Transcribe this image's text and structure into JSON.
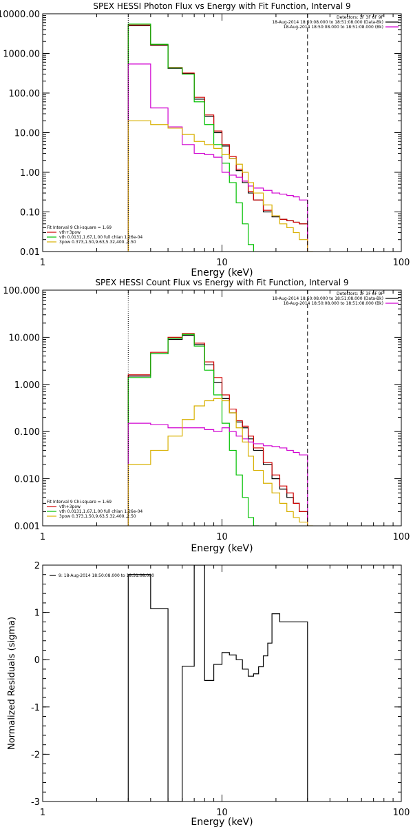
{
  "chart_data": [
    {
      "type": "line",
      "title": "SPEX HESSI Photon Flux vs Energy with Fit Function, Interval 9",
      "xlabel": "Energy (keV)",
      "ylabel": "",
      "xscale": "log",
      "yscale": "log",
      "xlim": [
        1,
        100
      ],
      "ylim": [
        0.01,
        10000
      ],
      "x_ticks": [
        1,
        10,
        100
      ],
      "x_tick_labels": [
        "1",
        "10",
        "100"
      ],
      "y_ticks": [
        10000,
        1000,
        100,
        10,
        1,
        0.1,
        0.01
      ],
      "y_tick_labels": [
        "10000.00",
        "1000.00",
        "100.00",
        "10.00",
        "1.00",
        "0.10",
        "0.01"
      ],
      "legend_top_right": [
        {
          "text": "Detectors: 1F 3F 6F 9F",
          "color": "#000000",
          "line": false
        },
        {
          "text": "18-Aug-2014 18:50:08.000 to 18:51:08.000 (Data-Bk)",
          "color": "#000000",
          "line": true
        },
        {
          "text": "18-Aug-2014 18:50:08.000 to 18:51:08.000 (Bk)",
          "color": "#d000d0",
          "line": true
        }
      ],
      "legend_bottom_left": [
        {
          "text": "Fit Interval 9   Chi-square = 1.69",
          "color": "#000000",
          "line": false
        },
        {
          "text": "vth+3pow",
          "color": "#d00000",
          "line": true
        },
        {
          "text": "vth 0.0131,1.67,1.00  full chian 1.26e-04",
          "color": "#00c000",
          "line": true
        },
        {
          "text": "3pow 0.373,1.50,9.63,5.32,400.,2.50",
          "color": "#d8b000",
          "line": true
        }
      ],
      "vlines": [
        {
          "x": 3,
          "style": "dotted",
          "color": "#000000"
        },
        {
          "x": 30,
          "style": "dashed",
          "color": "#000000"
        }
      ],
      "series": [
        {
          "color": "#000000",
          "edges": [
            3,
            4,
            5,
            6,
            7,
            8,
            9,
            10,
            11,
            12,
            13,
            14,
            15,
            17,
            19,
            21,
            23,
            25,
            27,
            30
          ],
          "values": [
            5000,
            1600,
            420,
            310,
            70,
            26,
            10,
            4.6,
            2.2,
            1.1,
            0.55,
            0.3,
            0.2,
            0.1,
            0.075,
            0.065,
            0.06,
            0.055,
            0.05
          ]
        },
        {
          "color": "#d00000",
          "edges": [
            3,
            4,
            5,
            6,
            7,
            8,
            9,
            10,
            11,
            12,
            13,
            14,
            15,
            17,
            19,
            21,
            23,
            25,
            27,
            30
          ],
          "values": [
            5200,
            1650,
            440,
            320,
            78,
            28,
            11,
            5.0,
            2.5,
            1.2,
            0.6,
            0.33,
            0.2,
            0.11,
            0.08,
            0.065,
            0.06,
            0.055,
            0.05
          ]
        },
        {
          "color": "#00c000",
          "edges": [
            3,
            4,
            5,
            6,
            7,
            8,
            9,
            10,
            11,
            12,
            13,
            14,
            15
          ],
          "values": [
            5500,
            1700,
            430,
            300,
            60,
            16,
            5,
            1.7,
            0.55,
            0.17,
            0.05,
            0.015
          ]
        },
        {
          "color": "#d000d0",
          "edges": [
            3,
            4,
            5,
            6,
            7,
            8,
            9,
            10,
            11,
            12,
            13,
            14,
            15,
            17,
            19,
            21,
            23,
            25,
            27,
            30
          ],
          "values": [
            540,
            42,
            14,
            5,
            3,
            2.8,
            2.4,
            1.0,
            0.85,
            0.75,
            0.6,
            0.45,
            0.4,
            0.35,
            0.3,
            0.28,
            0.26,
            0.24,
            0.2
          ]
        },
        {
          "color": "#d8b000",
          "edges": [
            3,
            4,
            5,
            6,
            7,
            8,
            9,
            10,
            11,
            12,
            13,
            14,
            15,
            17,
            19,
            21,
            23,
            25,
            27,
            30,
            32
          ],
          "values": [
            20,
            16,
            13,
            9,
            6,
            5,
            4,
            2.8,
            2.2,
            1.6,
            1.0,
            0.55,
            0.3,
            0.15,
            0.08,
            0.05,
            0.04,
            0.03,
            0.02,
            0.01
          ]
        }
      ]
    },
    {
      "type": "line",
      "title": "SPEX HESSI Count Flux vs Energy with Fit Function, Interval 9",
      "xlabel": "Energy (keV)",
      "ylabel": "",
      "xscale": "log",
      "yscale": "log",
      "xlim": [
        1,
        100
      ],
      "ylim": [
        0.001,
        100
      ],
      "x_ticks": [
        1,
        10,
        100
      ],
      "x_tick_labels": [
        "1",
        "10",
        "100"
      ],
      "y_ticks": [
        100,
        10,
        1,
        0.1,
        0.01,
        0.001
      ],
      "y_tick_labels": [
        "100.000",
        "10.000",
        "1.000",
        "0.100",
        "0.010",
        "0.001"
      ],
      "legend_top_right": [
        {
          "text": "Detectors: 1F 3F 6F 9F",
          "color": "#000000",
          "line": false
        },
        {
          "text": "18-Aug-2014 18:50:08.000 to 18:51:08.000 (Data-Bk)",
          "color": "#000000",
          "line": true
        },
        {
          "text": "18-Aug-2014 18:50:08.000 to 18:51:08.000 (Bk)",
          "color": "#d000d0",
          "line": true
        }
      ],
      "legend_bottom_left": [
        {
          "text": "Fit Interval 9   Chi-square = 1.69",
          "color": "#000000",
          "line": false
        },
        {
          "text": "vth+3pow",
          "color": "#d00000",
          "line": true
        },
        {
          "text": "vth 0.0131,1.67,1.00  full chian 1.26e-04",
          "color": "#00c000",
          "line": true
        },
        {
          "text": "3pow 0.373,1.50,9.63,5.32,400.,2.50",
          "color": "#d8b000",
          "line": true
        }
      ],
      "vlines": [
        {
          "x": 3,
          "style": "dotted",
          "color": "#000000"
        },
        {
          "x": 30,
          "style": "dashed",
          "color": "#000000"
        }
      ],
      "series": [
        {
          "color": "#000000",
          "edges": [
            3,
            4,
            5,
            6,
            7,
            8,
            9,
            10,
            11,
            12,
            13,
            14,
            15,
            17,
            19,
            21,
            23,
            25,
            27,
            30
          ],
          "values": [
            1.5,
            4.5,
            9,
            11,
            7,
            2.6,
            1.1,
            0.5,
            0.25,
            0.16,
            0.12,
            0.07,
            0.04,
            0.02,
            0.01,
            0.006,
            0.004,
            0.003,
            0.002
          ]
        },
        {
          "color": "#d00000",
          "edges": [
            3,
            4,
            5,
            6,
            7,
            8,
            9,
            10,
            11,
            12,
            13,
            14,
            15,
            17,
            19,
            21,
            23,
            25,
            27,
            30
          ],
          "values": [
            1.6,
            4.8,
            10,
            12,
            7.5,
            3.0,
            1.4,
            0.6,
            0.3,
            0.17,
            0.13,
            0.08,
            0.045,
            0.022,
            0.012,
            0.007,
            0.005,
            0.003,
            0.002
          ]
        },
        {
          "color": "#00c000",
          "edges": [
            3,
            4,
            5,
            6,
            7,
            8,
            9,
            10,
            11,
            12,
            13,
            14,
            15,
            16
          ],
          "values": [
            1.4,
            4.5,
            9.5,
            11.5,
            6.5,
            2.0,
            0.6,
            0.15,
            0.04,
            0.012,
            0.004,
            0.0015,
            0.001
          ]
        },
        {
          "color": "#d000d0",
          "edges": [
            3,
            4,
            5,
            6,
            7,
            8,
            9,
            10,
            11,
            12,
            13,
            14,
            15,
            17,
            19,
            21,
            23,
            25,
            27,
            30
          ],
          "values": [
            0.15,
            0.14,
            0.12,
            0.12,
            0.12,
            0.11,
            0.1,
            0.12,
            0.1,
            0.08,
            0.07,
            0.06,
            0.055,
            0.05,
            0.048,
            0.045,
            0.04,
            0.036,
            0.032
          ]
        },
        {
          "color": "#d8b000",
          "edges": [
            3,
            4,
            5,
            6,
            7,
            8,
            9,
            10,
            11,
            12,
            13,
            14,
            15,
            17,
            19,
            21,
            23,
            25,
            27,
            30,
            32
          ],
          "values": [
            0.02,
            0.04,
            0.08,
            0.18,
            0.35,
            0.45,
            0.5,
            0.45,
            0.25,
            0.12,
            0.06,
            0.03,
            0.015,
            0.008,
            0.005,
            0.003,
            0.002,
            0.0015,
            0.0012,
            0.001
          ]
        }
      ]
    },
    {
      "type": "line",
      "title": "",
      "xlabel": "Energy (keV)",
      "ylabel": "Normalized Residuals (sigma)",
      "xscale": "log",
      "yscale": "linear",
      "xlim": [
        1,
        100
      ],
      "ylim": [
        -3,
        2
      ],
      "x_ticks": [
        1,
        10,
        100
      ],
      "x_tick_labels": [
        "1",
        "10",
        "100"
      ],
      "y_ticks": [
        2,
        1,
        0,
        -1,
        -2,
        -3
      ],
      "y_tick_labels": [
        "2",
        "1",
        "0",
        "-1",
        "-2",
        "-3"
      ],
      "legend_top_left": [
        {
          "text": "9: 18-Aug-2014 18:50:08.000 to 18:51:08.000",
          "color": "#000000",
          "line": true
        }
      ],
      "series": [
        {
          "color": "#000000",
          "edges": [
            3,
            4,
            5,
            6,
            7,
            8,
            9,
            10,
            11,
            12,
            13,
            14,
            15,
            16,
            17,
            18,
            19,
            21,
            23,
            25,
            27,
            30
          ],
          "values": [
            1.8,
            1.08,
            -3.0,
            -0.14,
            2.0,
            -0.44,
            -0.1,
            0.15,
            0.1,
            0.0,
            -0.2,
            -0.35,
            -0.3,
            -0.15,
            0.08,
            0.35,
            0.97,
            0.8,
            0.8,
            0.8,
            0.8
          ],
          "drop_at": [
            3,
            30
          ]
        }
      ]
    }
  ]
}
